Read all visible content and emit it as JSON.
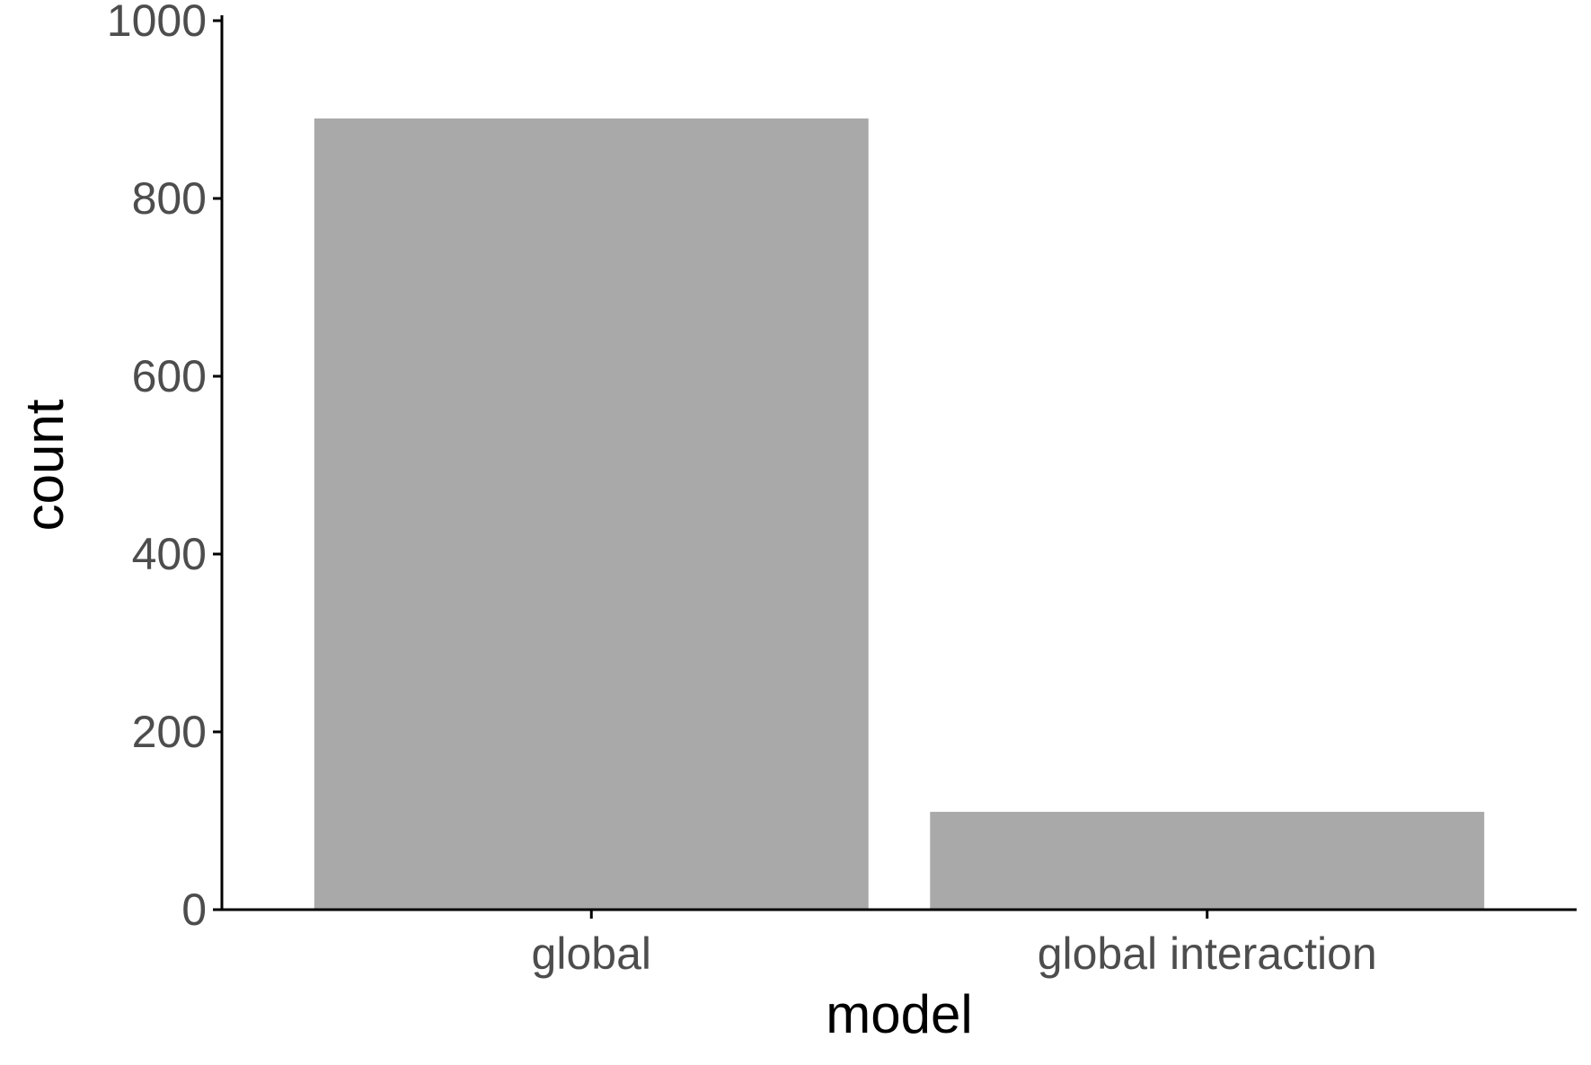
{
  "chart_data": {
    "type": "bar",
    "title": "",
    "xlabel": "model",
    "ylabel": "count",
    "categories": [
      "global",
      "global interaction"
    ],
    "values": [
      890,
      110
    ],
    "ylim": [
      0,
      1000
    ],
    "yticks": [
      0,
      200,
      400,
      600,
      800,
      1000
    ],
    "ytick_labels": [
      "0",
      "200",
      "400",
      "600",
      "800",
      "1000"
    ],
    "grid": false,
    "legend": "none",
    "bar_color": "#a9a9a9",
    "axis_color": "#000000",
    "tick_label_color": "#4d4d4d"
  }
}
